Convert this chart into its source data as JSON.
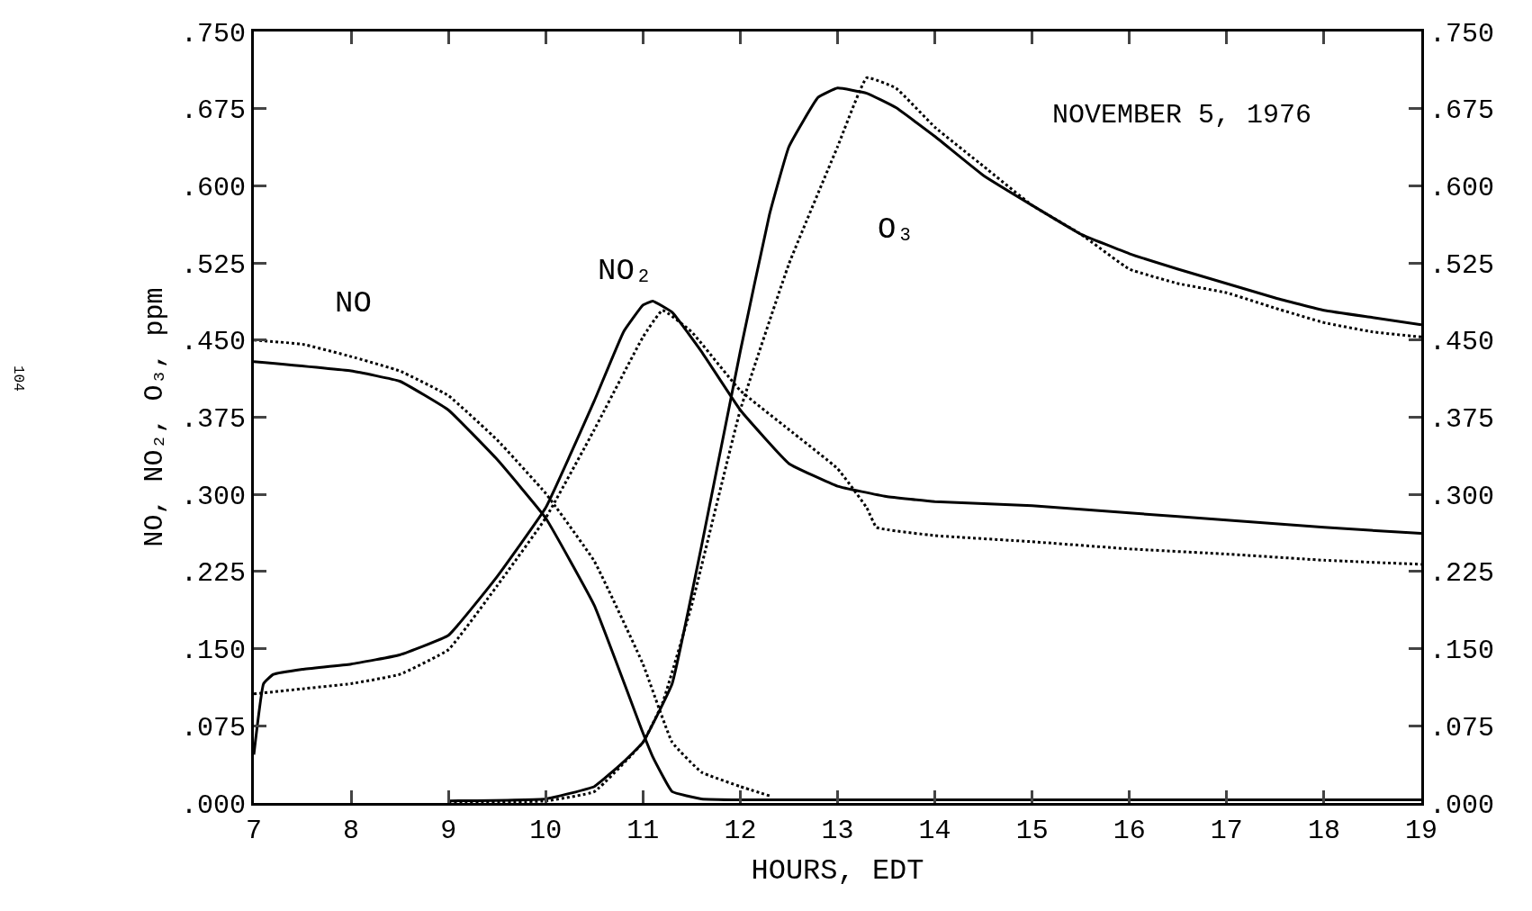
{
  "chart_data": {
    "type": "line",
    "xlabel": "HOURS, EDT",
    "ylabel": "NO, NO₂, O₃, ppm",
    "annotations": [
      "NO",
      "NO₂",
      "O₃",
      "NOVEMBER 5, 1976",
      "104"
    ],
    "xlim": [
      7,
      19
    ],
    "xticks": [
      7,
      8,
      9,
      10,
      11,
      12,
      13,
      14,
      15,
      16,
      17,
      18,
      19
    ],
    "ylim": [
      0,
      0.75
    ],
    "yticks": [
      {
        "value": 0,
        "label": ".000"
      },
      {
        "value": 0.075,
        "label": ".075"
      },
      {
        "value": 0.15,
        "label": ".150"
      },
      {
        "value": 0.225,
        "label": ".225"
      },
      {
        "value": 0.3,
        "label": ".300"
      },
      {
        "value": 0.375,
        "label": ".375"
      },
      {
        "value": 0.45,
        "label": ".450"
      },
      {
        "value": 0.525,
        "label": ".525"
      },
      {
        "value": 0.6,
        "label": ".600"
      },
      {
        "value": 0.675,
        "label": ".675"
      },
      {
        "value": 0.75,
        "label": ".750"
      }
    ],
    "y2lim": [
      0,
      0.75
    ],
    "y2ticks": [
      {
        "value": 0,
        "label": ".000"
      },
      {
        "value": 0.075,
        "label": ".075"
      },
      {
        "value": 0.15,
        "label": ".150"
      },
      {
        "value": 0.225,
        "label": ".225"
      },
      {
        "value": 0.3,
        "label": ".300"
      },
      {
        "value": 0.375,
        "label": ".375"
      },
      {
        "value": 0.45,
        "label": ".450"
      },
      {
        "value": 0.525,
        "label": ".525"
      },
      {
        "value": 0.6,
        "label": ".600"
      },
      {
        "value": 0.675,
        "label": ".675"
      },
      {
        "value": 0.75,
        "label": ".750"
      }
    ],
    "marker": "none",
    "series": [
      {
        "color": "#000000",
        "line_style": "solid",
        "x": [
          7,
          8,
          8.5,
          9,
          9.5,
          10,
          10.5,
          11,
          11.1,
          11.3,
          11.6,
          12,
          13,
          14,
          15,
          16,
          17,
          18,
          19
        ],
        "values": [
          0.429,
          0.42,
          0.41,
          0.382,
          0.334,
          0.277,
          0.192,
          0.068,
          0.045,
          0.011,
          0.004,
          0.003,
          0.003,
          0.003,
          0.003,
          0.003,
          0.003,
          0.003,
          0.003
        ]
      },
      {
        "color": "#000000",
        "line_style": "dotted",
        "x": [
          7,
          7.5,
          8,
          8.5,
          9,
          9.5,
          10,
          10.5,
          11,
          11.3,
          11.6,
          12,
          12.3
        ],
        "values": [
          0.45,
          0.446,
          0.434,
          0.42,
          0.396,
          0.353,
          0.301,
          0.235,
          0.135,
          0.059,
          0.03,
          0.016,
          0.007
        ]
      },
      {
        "color": "#000000",
        "line_style": "solid",
        "x": [
          7,
          7.1,
          7.2,
          7.5,
          8,
          8.5,
          9,
          9.5,
          10,
          10.5,
          10.8,
          11,
          11.1,
          11.3,
          11.6,
          12,
          12.5,
          13,
          13.5,
          14,
          15,
          16,
          17,
          18,
          19
        ],
        "values": [
          0.047,
          0.116,
          0.125,
          0.13,
          0.135,
          0.144,
          0.163,
          0.22,
          0.287,
          0.391,
          0.458,
          0.484,
          0.488,
          0.477,
          0.439,
          0.382,
          0.33,
          0.308,
          0.298,
          0.293,
          0.289,
          0.282,
          0.275,
          0.268,
          0.262
        ]
      },
      {
        "color": "#000000",
        "line_style": "dotted",
        "x": [
          7,
          7.5,
          8,
          8.5,
          9,
          9.5,
          10,
          10.5,
          11,
          11.2,
          11.5,
          12,
          12.5,
          13,
          13.3,
          13.4,
          14,
          15,
          16,
          17,
          18,
          19
        ],
        "values": [
          0.106,
          0.111,
          0.116,
          0.125,
          0.149,
          0.211,
          0.277,
          0.363,
          0.453,
          0.479,
          0.458,
          0.401,
          0.363,
          0.325,
          0.287,
          0.268,
          0.26,
          0.254,
          0.247,
          0.242,
          0.236,
          0.232
        ]
      },
      {
        "color": "#000000",
        "line_style": "solid",
        "x": [
          9,
          10,
          10.5,
          10.8,
          11,
          11.3,
          11.6,
          12,
          12.3,
          12.5,
          12.8,
          13,
          13.3,
          13.6,
          14,
          14.5,
          15,
          15.5,
          16,
          16.5,
          17,
          17.5,
          18,
          18.5,
          19
        ],
        "values": [
          0.002,
          0.004,
          0.016,
          0.04,
          0.059,
          0.116,
          0.249,
          0.439,
          0.572,
          0.638,
          0.686,
          0.695,
          0.69,
          0.676,
          0.648,
          0.61,
          0.581,
          0.553,
          0.534,
          0.519,
          0.505,
          0.491,
          0.479,
          0.472,
          0.465
        ]
      },
      {
        "color": "#000000",
        "line_style": "dotted",
        "x": [
          9,
          10,
          10.5,
          11,
          11.2,
          11.5,
          12,
          12.5,
          13,
          13.3,
          13.6,
          14,
          14.5,
          15,
          15.5,
          16,
          16.5,
          17,
          17.5,
          18,
          18.5,
          19
        ],
        "values": [
          0,
          0.002,
          0.011,
          0.059,
          0.097,
          0.192,
          0.382,
          0.524,
          0.638,
          0.705,
          0.695,
          0.657,
          0.619,
          0.581,
          0.553,
          0.519,
          0.505,
          0.496,
          0.481,
          0.467,
          0.458,
          0.453
        ]
      }
    ]
  }
}
